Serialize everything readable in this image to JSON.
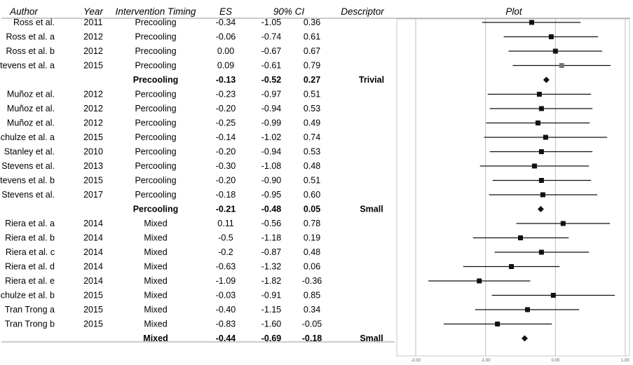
{
  "chart_data": {
    "type": "forest",
    "headers": {
      "author": "Author",
      "year": "Year",
      "timing": "Intervention Timing",
      "es": "ES",
      "ci": "90% CI",
      "descriptor": "Descriptor",
      "plot": "Plot"
    },
    "rows": [
      {
        "author": "Ross et al.",
        "year": "2011",
        "timing": "Precooling",
        "es": "-0.34",
        "lo": "-1.05",
        "hi": "0.36",
        "descriptor": "",
        "summary": false
      },
      {
        "author": "Ross et al. a",
        "year": "2012",
        "timing": "Precooling",
        "es": "-0.06",
        "lo": "-0.74",
        "hi": "0.61",
        "descriptor": "",
        "summary": false
      },
      {
        "author": "Ross et al. b",
        "year": "2012",
        "timing": "Precooling",
        "es": "0.00",
        "lo": "-0.67",
        "hi": "0.67",
        "descriptor": "",
        "summary": false
      },
      {
        "author": "Stevens et al. a",
        "year": "2015",
        "timing": "Precooling",
        "es": "0.09",
        "lo": "-0.61",
        "hi": "0.79",
        "descriptor": "",
        "summary": false,
        "marker_color": "#777777"
      },
      {
        "author": "",
        "year": "",
        "timing": "Precooling",
        "es": "-0.13",
        "lo": "-0.52",
        "hi": "0.27",
        "descriptor": "Trivial",
        "summary": true
      },
      {
        "author": "Muñoz et al.",
        "year": "2012",
        "timing": "Percooling",
        "es": "-0.23",
        "lo": "-0.97",
        "hi": "0.51",
        "descriptor": "",
        "summary": false
      },
      {
        "author": "Muñoz et al.",
        "year": "2012",
        "timing": "Percooling",
        "es": "-0.20",
        "lo": "-0.94",
        "hi": "0.53",
        "descriptor": "",
        "summary": false
      },
      {
        "author": "Muñoz et al.",
        "year": "2012",
        "timing": "Percooling",
        "es": "-0.25",
        "lo": "-0.99",
        "hi": "0.49",
        "descriptor": "",
        "summary": false
      },
      {
        "author": "Schulze et al. a",
        "year": "2015",
        "timing": "Percooling",
        "es": "-0.14",
        "lo": "-1.02",
        "hi": "0.74",
        "descriptor": "",
        "summary": false
      },
      {
        "author": "Stanley et al.",
        "year": "2010",
        "timing": "Percooling",
        "es": "-0.20",
        "lo": "-0.94",
        "hi": "0.53",
        "descriptor": "",
        "summary": false
      },
      {
        "author": "Stevens et al.",
        "year": "2013",
        "timing": "Percooling",
        "es": "-0.30",
        "lo": "-1.08",
        "hi": "0.48",
        "descriptor": "",
        "summary": false
      },
      {
        "author": "Stevens et al. b",
        "year": "2015",
        "timing": "Percooling",
        "es": "-0.20",
        "lo": "-0.90",
        "hi": "0.51",
        "descriptor": "",
        "summary": false
      },
      {
        "author": "Stevens et al.",
        "year": "2017",
        "timing": "Percooling",
        "es": "-0.18",
        "lo": "-0.95",
        "hi": "0.60",
        "descriptor": "",
        "summary": false
      },
      {
        "author": "",
        "year": "",
        "timing": "Percooling",
        "es": "-0.21",
        "lo": "-0.48",
        "hi": "0.05",
        "descriptor": "Small",
        "summary": true
      },
      {
        "author": "Riera et al. a",
        "year": "2014",
        "timing": "Mixed",
        "es": "0.11",
        "lo": "-0.56",
        "hi": "0.78",
        "descriptor": "",
        "summary": false
      },
      {
        "author": "Riera et al. b",
        "year": "2014",
        "timing": "Mixed",
        "es": "-0.5",
        "lo": "-1.18",
        "hi": "0.19",
        "descriptor": "",
        "summary": false
      },
      {
        "author": "Riera et al. c",
        "year": "2014",
        "timing": "Mixed",
        "es": "-0.2",
        "lo": "-0.87",
        "hi": "0.48",
        "descriptor": "",
        "summary": false
      },
      {
        "author": "Riera et al. d",
        "year": "2014",
        "timing": "Mixed",
        "es": "-0.63",
        "lo": "-1.32",
        "hi": "0.06",
        "descriptor": "",
        "summary": false
      },
      {
        "author": "Riera et al. e",
        "year": "2014",
        "timing": "Mixed",
        "es": "-1.09",
        "lo": "-1.82",
        "hi": "-0.36",
        "descriptor": "",
        "summary": false
      },
      {
        "author": "Schulze et al. b",
        "year": "2015",
        "timing": "Mixed",
        "es": "-0.03",
        "lo": "-0.91",
        "hi": "0.85",
        "descriptor": "",
        "summary": false
      },
      {
        "author": "Tran Trong a",
        "year": "2015",
        "timing": "Mixed",
        "es": "-0.40",
        "lo": "-1.15",
        "hi": "0.34",
        "descriptor": "",
        "summary": false
      },
      {
        "author": "Tran Trong b",
        "year": "2015",
        "timing": "Mixed",
        "es": "-0.83",
        "lo": "-1.60",
        "hi": "-0.05",
        "descriptor": "",
        "summary": false
      },
      {
        "author": "",
        "year": "",
        "timing": "Mixed",
        "es": "-0.44",
        "lo": "-0.69",
        "hi": "-0.18",
        "descriptor": "Small",
        "summary": true
      }
    ],
    "x_axis": {
      "ticks": [
        "-2.00",
        "-1.00",
        "0.00",
        "1.00"
      ],
      "tick_values": [
        -2,
        -1,
        0,
        1
      ],
      "xlim": [
        -2,
        1
      ]
    },
    "grid": true,
    "colors": {
      "marker": "#111111",
      "line": "#111111",
      "grid": "#bdbdbd"
    }
  }
}
